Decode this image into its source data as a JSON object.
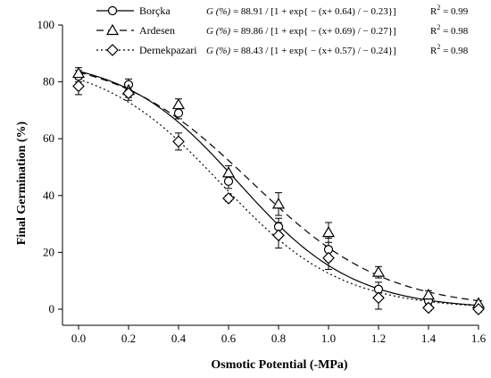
{
  "chart_data": {
    "type": "line",
    "xlabel": "Osmotic Potential (-MPa)",
    "ylabel": "Final Germination (%)",
    "xlim": [
      0.0,
      1.6
    ],
    "ylim": [
      0,
      100
    ],
    "x_ticks": [
      "0.0",
      "0.2",
      "0.4",
      "0.6",
      "0.8",
      "1.0",
      "1.2",
      "1.4",
      "1.6"
    ],
    "y_ticks": [
      "0",
      "20",
      "40",
      "60",
      "80",
      "100"
    ],
    "grid": false,
    "legend_position": "top",
    "x": [
      0.0,
      0.2,
      0.4,
      0.6,
      0.8,
      1.0,
      1.2,
      1.4,
      1.6
    ],
    "series": [
      {
        "name": "Borçka",
        "marker": "circle",
        "line_style": "solid",
        "color": "#000000",
        "values": [
          82,
          79,
          69,
          45,
          29,
          21,
          7,
          3,
          1
        ],
        "errors": [
          2,
          2,
          2,
          2.5,
          3,
          4,
          2.5,
          1,
          1
        ],
        "fit_params": [
          88.91,
          0.64,
          0.23
        ],
        "equation": {
          "lhs": "G (%)",
          "rhs": "= 88.91 / [1 + exp{ − (x+ 0.64) / − 0.23}]"
        },
        "r2_label": "R",
        "r2_exp": "2",
        "r2_value": " = 0.99"
      },
      {
        "name": "Ardesen",
        "marker": "triangle",
        "line_style": "dashed",
        "color": "#000000",
        "values": [
          83,
          77,
          72,
          48,
          37,
          27,
          13,
          5,
          2
        ],
        "errors": [
          2,
          2.5,
          2,
          2.5,
          4,
          3.5,
          2,
          1.5,
          1
        ],
        "fit_params": [
          89.86,
          0.69,
          0.27
        ],
        "equation": {
          "lhs": "G (%)",
          "rhs": "= 89.86 / [1 + exp{ − (x+ 0.69) / − 0.27}]"
        },
        "r2_label": "R",
        "r2_exp": "2",
        "r2_value": " = 0.98"
      },
      {
        "name": "Dernekpazari",
        "marker": "diamond",
        "line_style": "dotted",
        "color": "#000000",
        "values": [
          78.5,
          76,
          59,
          39,
          26,
          18,
          4,
          0.5,
          0
        ],
        "errors": [
          3,
          2.5,
          3,
          1,
          4.5,
          4,
          4,
          1,
          1
        ],
        "fit_params": [
          88.43,
          0.57,
          0.24
        ],
        "equation": {
          "lhs": "G (%)",
          "rhs": "= 88.43 / [1 + exp{ − (x+ 0.57) / − 0.24}]"
        },
        "r2_label": "R",
        "r2_exp": "2",
        "r2_value": " = 0.98"
      }
    ]
  }
}
